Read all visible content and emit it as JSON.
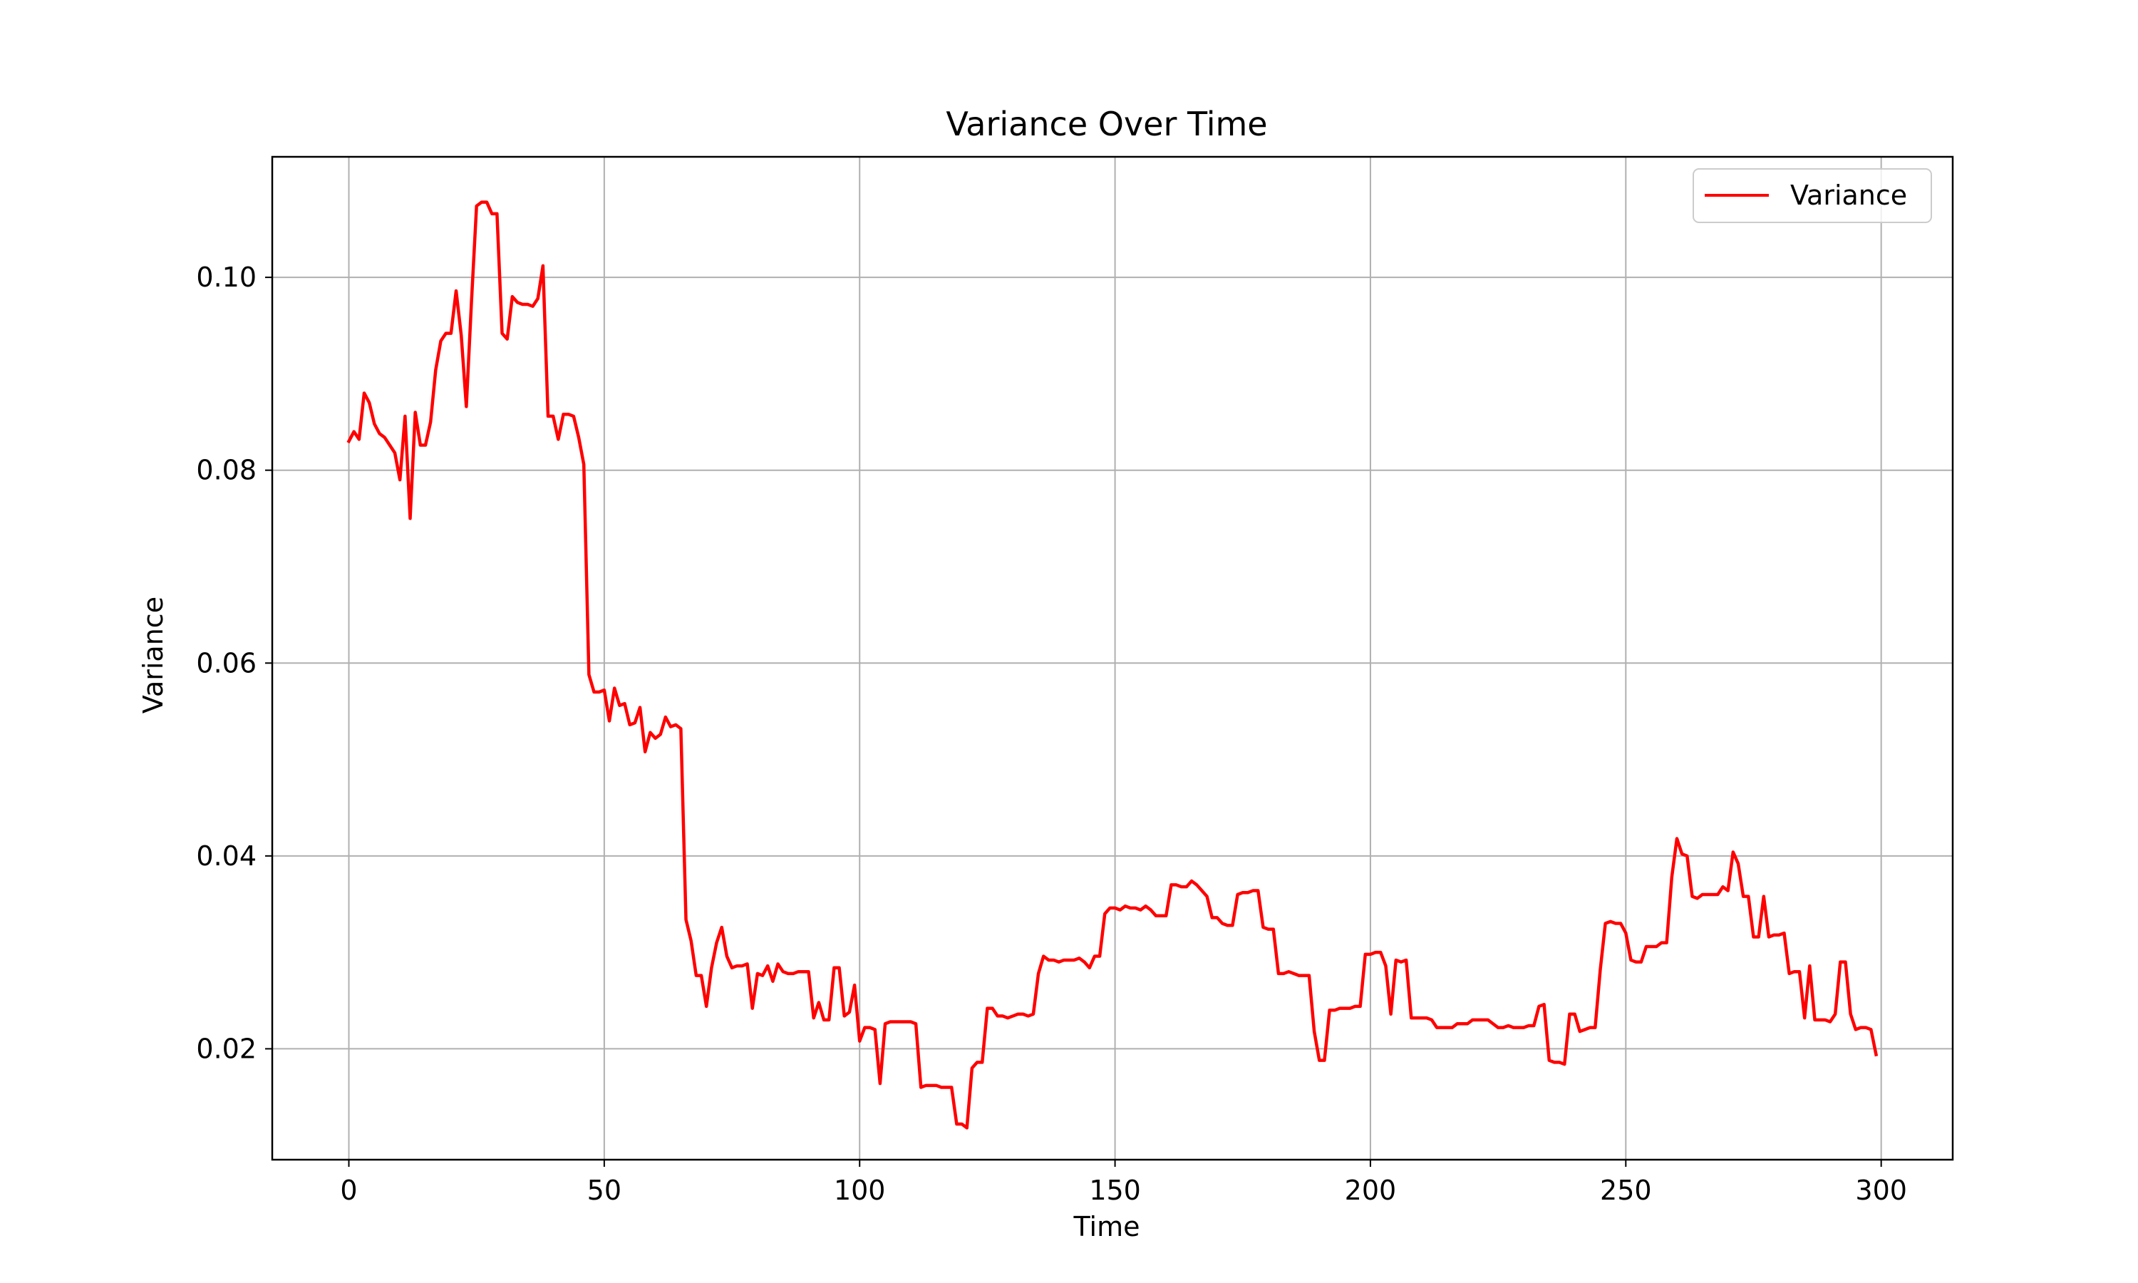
{
  "colors": {
    "series": "#ff0000",
    "grid": "#b0b0b0",
    "axes": "#000000",
    "background": "#ffffff",
    "legend_border": "#cccccc"
  },
  "chart_data": {
    "type": "line",
    "title": "Variance Over Time",
    "xlabel": "Time",
    "ylabel": "Variance",
    "xlim": [
      -15,
      314
    ],
    "ylim": [
      0.0085,
      0.1125
    ],
    "grid": true,
    "legend_position": "top-right",
    "xticks": [
      0,
      50,
      100,
      150,
      200,
      250,
      300
    ],
    "xtick_labels": [
      "0",
      "50",
      "100",
      "150",
      "200",
      "250",
      "300"
    ],
    "yticks": [
      0.02,
      0.04,
      0.06,
      0.08,
      0.1
    ],
    "ytick_labels": [
      "0.02",
      "0.04",
      "0.06",
      "0.08",
      "0.10"
    ],
    "series": [
      {
        "name": "Variance",
        "points": [
          [
            0,
            0.083
          ],
          [
            1,
            0.084
          ],
          [
            2,
            0.0832
          ],
          [
            3,
            0.088
          ],
          [
            4,
            0.087
          ],
          [
            5,
            0.0848
          ],
          [
            6,
            0.0838
          ],
          [
            7,
            0.0834
          ],
          [
            8,
            0.0826
          ],
          [
            9,
            0.0818
          ],
          [
            10,
            0.079
          ],
          [
            11,
            0.0856
          ],
          [
            12,
            0.075
          ],
          [
            13,
            0.086
          ],
          [
            14,
            0.0826
          ],
          [
            15,
            0.0826
          ],
          [
            16,
            0.085
          ],
          [
            17,
            0.0904
          ],
          [
            18,
            0.0934
          ],
          [
            19,
            0.0942
          ],
          [
            20,
            0.0942
          ],
          [
            21,
            0.0986
          ],
          [
            22,
            0.094
          ],
          [
            23,
            0.0866
          ],
          [
            24,
            0.0974
          ],
          [
            25,
            0.1074
          ],
          [
            26,
            0.1078
          ],
          [
            27,
            0.1078
          ],
          [
            28,
            0.1066
          ],
          [
            29,
            0.1066
          ],
          [
            30,
            0.0942
          ],
          [
            31,
            0.0936
          ],
          [
            32,
            0.098
          ],
          [
            33,
            0.0974
          ],
          [
            34,
            0.0972
          ],
          [
            35,
            0.0972
          ],
          [
            36,
            0.097
          ],
          [
            37,
            0.0978
          ],
          [
            38,
            0.1012
          ],
          [
            39,
            0.0856
          ],
          [
            40,
            0.0856
          ],
          [
            41,
            0.0832
          ],
          [
            42,
            0.0858
          ],
          [
            43,
            0.0858
          ],
          [
            44,
            0.0856
          ],
          [
            45,
            0.0834
          ],
          [
            46,
            0.0806
          ],
          [
            47,
            0.0588
          ],
          [
            48,
            0.057
          ],
          [
            49,
            0.057
          ],
          [
            50,
            0.0572
          ],
          [
            51,
            0.054
          ],
          [
            52,
            0.0574
          ],
          [
            53,
            0.0556
          ],
          [
            54,
            0.0558
          ],
          [
            55,
            0.0536
          ],
          [
            56,
            0.0538
          ],
          [
            57,
            0.0554
          ],
          [
            58,
            0.0508
          ],
          [
            59,
            0.0528
          ],
          [
            60,
            0.0522
          ],
          [
            61,
            0.0526
          ],
          [
            62,
            0.0544
          ],
          [
            63,
            0.0534
          ],
          [
            64,
            0.0536
          ],
          [
            65,
            0.0532
          ],
          [
            66,
            0.0334
          ],
          [
            67,
            0.0312
          ],
          [
            68,
            0.0276
          ],
          [
            69,
            0.0276
          ],
          [
            70,
            0.0244
          ],
          [
            71,
            0.0284
          ],
          [
            72,
            0.031
          ],
          [
            73,
            0.0326
          ],
          [
            74,
            0.0296
          ],
          [
            75,
            0.0284
          ],
          [
            76,
            0.0286
          ],
          [
            77,
            0.0286
          ],
          [
            78,
            0.0288
          ],
          [
            79,
            0.0242
          ],
          [
            80,
            0.0278
          ],
          [
            81,
            0.0276
          ],
          [
            82,
            0.0286
          ],
          [
            83,
            0.027
          ],
          [
            84,
            0.0288
          ],
          [
            85,
            0.028
          ],
          [
            86,
            0.0278
          ],
          [
            87,
            0.0278
          ],
          [
            88,
            0.028
          ],
          [
            89,
            0.028
          ],
          [
            90,
            0.028
          ],
          [
            91,
            0.0232
          ],
          [
            92,
            0.0248
          ],
          [
            93,
            0.023
          ],
          [
            94,
            0.023
          ],
          [
            95,
            0.0284
          ],
          [
            96,
            0.0284
          ],
          [
            97,
            0.0234
          ],
          [
            98,
            0.0238
          ],
          [
            99,
            0.0266
          ],
          [
            100,
            0.0208
          ],
          [
            101,
            0.0222
          ],
          [
            102,
            0.0222
          ],
          [
            103,
            0.022
          ],
          [
            104,
            0.0164
          ],
          [
            105,
            0.0226
          ],
          [
            106,
            0.0228
          ],
          [
            107,
            0.0228
          ],
          [
            108,
            0.0228
          ],
          [
            109,
            0.0228
          ],
          [
            110,
            0.0228
          ],
          [
            111,
            0.0226
          ],
          [
            112,
            0.016
          ],
          [
            113,
            0.0162
          ],
          [
            114,
            0.0162
          ],
          [
            115,
            0.0162
          ],
          [
            116,
            0.016
          ],
          [
            117,
            0.016
          ],
          [
            118,
            0.016
          ],
          [
            119,
            0.0122
          ],
          [
            120,
            0.0122
          ],
          [
            121,
            0.0118
          ],
          [
            122,
            0.018
          ],
          [
            123,
            0.0186
          ],
          [
            124,
            0.0186
          ],
          [
            125,
            0.0242
          ],
          [
            126,
            0.0242
          ],
          [
            127,
            0.0234
          ],
          [
            128,
            0.0234
          ],
          [
            129,
            0.0232
          ],
          [
            130,
            0.0234
          ],
          [
            131,
            0.0236
          ],
          [
            132,
            0.0236
          ],
          [
            133,
            0.0234
          ],
          [
            134,
            0.0236
          ],
          [
            135,
            0.0278
          ],
          [
            136,
            0.0296
          ],
          [
            137,
            0.0292
          ],
          [
            138,
            0.0292
          ],
          [
            139,
            0.029
          ],
          [
            140,
            0.0292
          ],
          [
            141,
            0.0292
          ],
          [
            142,
            0.0292
          ],
          [
            143,
            0.0294
          ],
          [
            144,
            0.029
          ],
          [
            145,
            0.0284
          ],
          [
            146,
            0.0296
          ],
          [
            147,
            0.0296
          ],
          [
            148,
            0.034
          ],
          [
            149,
            0.0346
          ],
          [
            150,
            0.0346
          ],
          [
            151,
            0.0344
          ],
          [
            152,
            0.0348
          ],
          [
            153,
            0.0346
          ],
          [
            154,
            0.0346
          ],
          [
            155,
            0.0344
          ],
          [
            156,
            0.0348
          ],
          [
            157,
            0.0344
          ],
          [
            158,
            0.0338
          ],
          [
            159,
            0.0338
          ],
          [
            160,
            0.0338
          ],
          [
            161,
            0.037
          ],
          [
            162,
            0.037
          ],
          [
            163,
            0.0368
          ],
          [
            164,
            0.0368
          ],
          [
            165,
            0.0374
          ],
          [
            166,
            0.037
          ],
          [
            167,
            0.0364
          ],
          [
            168,
            0.0358
          ],
          [
            169,
            0.0336
          ],
          [
            170,
            0.0336
          ],
          [
            171,
            0.033
          ],
          [
            172,
            0.0328
          ],
          [
            173,
            0.0328
          ],
          [
            174,
            0.036
          ],
          [
            175,
            0.0362
          ],
          [
            176,
            0.0362
          ],
          [
            177,
            0.0364
          ],
          [
            178,
            0.0364
          ],
          [
            179,
            0.0326
          ],
          [
            180,
            0.0324
          ],
          [
            181,
            0.0324
          ],
          [
            182,
            0.0278
          ],
          [
            183,
            0.0278
          ],
          [
            184,
            0.028
          ],
          [
            185,
            0.0278
          ],
          [
            186,
            0.0276
          ],
          [
            187,
            0.0276
          ],
          [
            188,
            0.0276
          ],
          [
            189,
            0.0218
          ],
          [
            190,
            0.0188
          ],
          [
            191,
            0.0188
          ],
          [
            192,
            0.024
          ],
          [
            193,
            0.024
          ],
          [
            194,
            0.0242
          ],
          [
            195,
            0.0242
          ],
          [
            196,
            0.0242
          ],
          [
            197,
            0.0244
          ],
          [
            198,
            0.0244
          ],
          [
            199,
            0.0298
          ],
          [
            200,
            0.0298
          ],
          [
            201,
            0.03
          ],
          [
            202,
            0.03
          ],
          [
            203,
            0.0286
          ],
          [
            204,
            0.0236
          ],
          [
            205,
            0.0292
          ],
          [
            206,
            0.029
          ],
          [
            207,
            0.0292
          ],
          [
            208,
            0.0232
          ],
          [
            209,
            0.0232
          ],
          [
            210,
            0.0232
          ],
          [
            211,
            0.0232
          ],
          [
            212,
            0.023
          ],
          [
            213,
            0.0222
          ],
          [
            214,
            0.0222
          ],
          [
            215,
            0.0222
          ],
          [
            216,
            0.0222
          ],
          [
            217,
            0.0226
          ],
          [
            218,
            0.0226
          ],
          [
            219,
            0.0226
          ],
          [
            220,
            0.023
          ],
          [
            221,
            0.023
          ],
          [
            222,
            0.023
          ],
          [
            223,
            0.023
          ],
          [
            224,
            0.0226
          ],
          [
            225,
            0.0222
          ],
          [
            226,
            0.0222
          ],
          [
            227,
            0.0224
          ],
          [
            228,
            0.0222
          ],
          [
            229,
            0.0222
          ],
          [
            230,
            0.0222
          ],
          [
            231,
            0.0224
          ],
          [
            232,
            0.0224
          ],
          [
            233,
            0.0244
          ],
          [
            234,
            0.0246
          ],
          [
            235,
            0.0188
          ],
          [
            236,
            0.0186
          ],
          [
            237,
            0.0186
          ],
          [
            238,
            0.0184
          ],
          [
            239,
            0.0236
          ],
          [
            240,
            0.0236
          ],
          [
            241,
            0.0218
          ],
          [
            242,
            0.022
          ],
          [
            243,
            0.0222
          ],
          [
            244,
            0.0222
          ],
          [
            245,
            0.0282
          ],
          [
            246,
            0.033
          ],
          [
            247,
            0.0332
          ],
          [
            248,
            0.033
          ],
          [
            249,
            0.033
          ],
          [
            250,
            0.032
          ],
          [
            251,
            0.0292
          ],
          [
            252,
            0.029
          ],
          [
            253,
            0.029
          ],
          [
            254,
            0.0306
          ],
          [
            255,
            0.0306
          ],
          [
            256,
            0.0306
          ],
          [
            257,
            0.031
          ],
          [
            258,
            0.031
          ],
          [
            259,
            0.0378
          ],
          [
            260,
            0.0418
          ],
          [
            261,
            0.0402
          ],
          [
            262,
            0.04
          ],
          [
            263,
            0.0358
          ],
          [
            264,
            0.0356
          ],
          [
            265,
            0.036
          ],
          [
            266,
            0.036
          ],
          [
            267,
            0.036
          ],
          [
            268,
            0.036
          ],
          [
            269,
            0.0368
          ],
          [
            270,
            0.0364
          ],
          [
            271,
            0.0404
          ],
          [
            272,
            0.0392
          ],
          [
            273,
            0.0358
          ],
          [
            274,
            0.0358
          ],
          [
            275,
            0.0316
          ],
          [
            276,
            0.0316
          ],
          [
            277,
            0.0358
          ],
          [
            278,
            0.0316
          ],
          [
            279,
            0.0318
          ],
          [
            280,
            0.0318
          ],
          [
            281,
            0.032
          ],
          [
            282,
            0.0278
          ],
          [
            283,
            0.028
          ],
          [
            284,
            0.028
          ],
          [
            285,
            0.0232
          ],
          [
            286,
            0.0286
          ],
          [
            287,
            0.023
          ],
          [
            288,
            0.023
          ],
          [
            289,
            0.023
          ],
          [
            290,
            0.0228
          ],
          [
            291,
            0.0236
          ],
          [
            292,
            0.029
          ],
          [
            293,
            0.029
          ],
          [
            294,
            0.0236
          ],
          [
            295,
            0.022
          ],
          [
            296,
            0.0222
          ],
          [
            297,
            0.0222
          ],
          [
            298,
            0.022
          ],
          [
            299,
            0.0194
          ]
        ]
      }
    ]
  }
}
